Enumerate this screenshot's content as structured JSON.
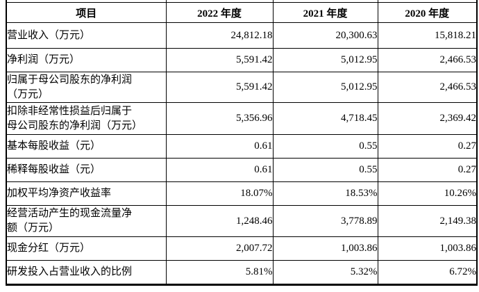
{
  "table": {
    "columns": [
      "项目",
      "2022 年度",
      "2021 年度",
      "2020 年度"
    ],
    "rows": [
      {
        "label": "营业收入（万元）",
        "values": [
          "24,812.18",
          "20,300.63",
          "15,818.21"
        ]
      },
      {
        "label": "净利润（万元）",
        "values": [
          "5,591.42",
          "5,012.95",
          "2,466.53"
        ]
      },
      {
        "label": "归属于母公司股东的净利润\n（万元）",
        "values": [
          "5,591.42",
          "5,012.95",
          "2,466.53"
        ]
      },
      {
        "label": "扣除非经常性损益后归属于\n母公司股东的净利润（万元）",
        "values": [
          "5,356.96",
          "4,718.45",
          "2,369.42"
        ]
      },
      {
        "label": "基本每股收益（元）",
        "values": [
          "0.61",
          "0.55",
          "0.27"
        ]
      },
      {
        "label": "稀释每股收益（元）",
        "values": [
          "0.61",
          "0.55",
          "0.27"
        ]
      },
      {
        "label": "加权平均净资产收益率",
        "values": [
          "18.07%",
          "18.53%",
          "10.26%"
        ]
      },
      {
        "label": "经营活动产生的现金流量净\n额（万元）",
        "values": [
          "1,248.46",
          "3,778.89",
          "2,149.38"
        ]
      },
      {
        "label": "现金分红（万元）",
        "values": [
          "2,007.72",
          "1,003.86",
          "1,003.86"
        ]
      },
      {
        "label": "研发投入占营业收入的比例",
        "values": [
          "5.81%",
          "5.32%",
          "6.72%"
        ]
      }
    ],
    "colors": {
      "border": "#000000",
      "text": "#000000",
      "background": "#ffffff"
    }
  }
}
